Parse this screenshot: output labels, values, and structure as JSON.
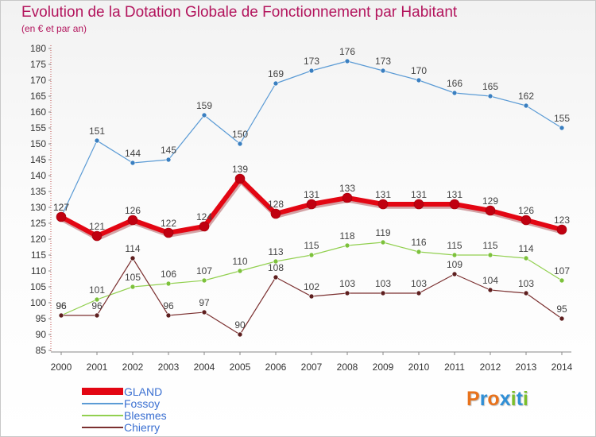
{
  "header": {
    "title": "Evolution de la Dotation Globale de Fonctionnement par Habitant",
    "subtitle": "(en € et par an)"
  },
  "logo": {
    "text": "Proxiti",
    "letters": [
      "P",
      "r",
      "o",
      "x",
      "i",
      "t",
      "i"
    ],
    "colors": [
      "#e8721c",
      "#2f8fd6",
      "#e8721c",
      "#2f8fd6",
      "#7bbf2a",
      "#2f8fd6",
      "#7bbf2a"
    ]
  },
  "chart_data": {
    "type": "line",
    "title": "Evolution de la Dotation Globale de Fonctionnement par Habitant",
    "subtitle": "(en € et par an)",
    "x": [
      "2000",
      "2001",
      "2002",
      "2003",
      "2004",
      "2005",
      "2006",
      "2007",
      "2008",
      "2009",
      "2010",
      "2011",
      "2012",
      "2013",
      "2014"
    ],
    "ylim": [
      85,
      180
    ],
    "ytick_step": 5,
    "yticks": [
      "85",
      "90",
      "95",
      "100",
      "105",
      "110",
      "115",
      "120",
      "125",
      "130",
      "135",
      "140",
      "145",
      "150",
      "155",
      "160",
      "165",
      "170",
      "175",
      "180"
    ],
    "grid": false,
    "legend_position": "bottom-left",
    "series": [
      {
        "name": "Fossoy",
        "color": "#5b9bd5",
        "point_color": "#3a7fc0",
        "width": 1.2,
        "marker": 3,
        "values": [
          127,
          151,
          144,
          145,
          159,
          150,
          169,
          173,
          176,
          173,
          170,
          166,
          165,
          162,
          155
        ]
      },
      {
        "name": "Blesmes",
        "color": "#92d050",
        "point_color": "#7cc13b",
        "width": 1.2,
        "marker": 3,
        "values": [
          96,
          101,
          105,
          106,
          107,
          110,
          113,
          115,
          118,
          119,
          116,
          115,
          115,
          114,
          107
        ]
      },
      {
        "name": "Chierry",
        "color": "#7b3030",
        "point_color": "#5e1f1f",
        "width": 1.2,
        "marker": 3,
        "values": [
          96,
          96,
          114,
          96,
          97,
          90,
          108,
          102,
          103,
          103,
          103,
          109,
          104,
          103,
          95
        ]
      },
      {
        "name": "GLAND",
        "color": "#e30613",
        "point_color": "#c00010",
        "width": 6,
        "marker": 6,
        "values": [
          127,
          121,
          126,
          122,
          124,
          139,
          128,
          131,
          133,
          131,
          131,
          131,
          129,
          126,
          123
        ]
      }
    ]
  }
}
